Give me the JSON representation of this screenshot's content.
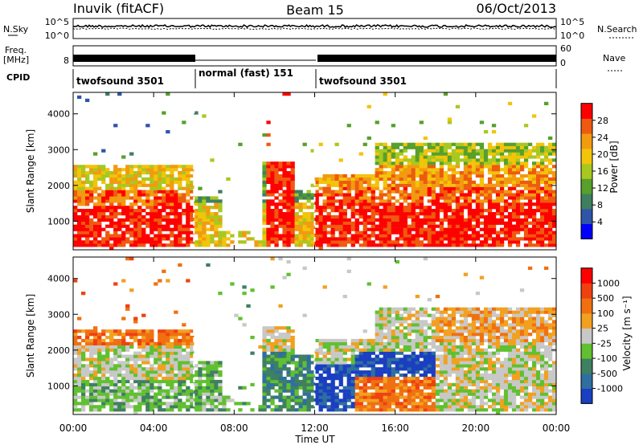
{
  "header": {
    "station": "Inuvik (fitACF)",
    "beam": "Beam 15",
    "date": "06/Oct/2013"
  },
  "top_panels": {
    "nsky_label": "N.Sky",
    "nsky_ticks": [
      "10^5",
      "10^0"
    ],
    "nsearch_label": "N.Search",
    "nsearch_ticks": [
      "10^5",
      "10^0"
    ],
    "freq_label": "Freq.",
    "freq_unit": "[MHz]",
    "freq_ticks": [
      "8"
    ],
    "nave_label": "Nave",
    "nave_ticks": [
      "60",
      "0"
    ],
    "cpid_label": "CPID",
    "cpid_segments": [
      {
        "label": "twofsound 3501",
        "start_h": 0,
        "end_h": 6
      },
      {
        "label": "normal (fast) 151",
        "start_h": 6,
        "end_h": 12
      },
      {
        "label": "twofsound 3501",
        "start_h": 12,
        "end_h": 24
      }
    ]
  },
  "chart_data": [
    {
      "type": "heatmap",
      "panel": "power",
      "ylabel": "Slant Range [km]",
      "xlim": [
        0,
        24
      ],
      "ylim": [
        200,
        4600
      ],
      "yticks": [
        1000,
        2000,
        3000,
        4000
      ],
      "colorbar_label": "Power [dB]",
      "colorbar_ticks": [
        "28",
        "24",
        "20",
        "16",
        "12",
        "8",
        "4"
      ],
      "colors": [
        "#0000ff",
        "#2f55a8",
        "#3f7f5f",
        "#56a02b",
        "#a8c820",
        "#f2c40a",
        "#f29a10",
        "#ee5a10",
        "#ff0000"
      ]
    },
    {
      "type": "heatmap",
      "panel": "velocity",
      "ylabel": "Slant Range [km]",
      "xlabel": "Time UT",
      "xlim": [
        0,
        24
      ],
      "ylim": [
        200,
        4600
      ],
      "yticks": [
        1000,
        2000,
        3000,
        4000
      ],
      "xticks": [
        "00:00",
        "04:00",
        "08:00",
        "12:00",
        "16:00",
        "20:00",
        "00:00"
      ],
      "colorbar_label": "Velocity [m s⁻¹]",
      "colorbar_ticks": [
        "1000",
        "500",
        "100",
        "25",
        "-25",
        "-100",
        "-500",
        "-1000"
      ],
      "colors": [
        "#1a3fc0",
        "#2f6fa0",
        "#3f8060",
        "#60c030",
        "#c8c8c8",
        "#f2a020",
        "#f07010",
        "#f04010",
        "#ff0000"
      ]
    }
  ]
}
